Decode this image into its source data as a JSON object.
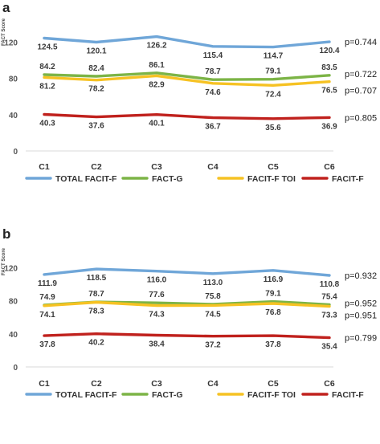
{
  "chart_data": [
    {
      "panel": "a",
      "type": "line",
      "ylabel": "FACT Score",
      "xlabel": "",
      "ylim": [
        0,
        140
      ],
      "yticks": [
        0,
        40,
        80,
        120
      ],
      "categories": [
        "C1",
        "C2",
        "C3",
        "C4",
        "C5",
        "C6"
      ],
      "grid": false,
      "legend_position": "bottom",
      "series": [
        {
          "name": "TOTAL FACIT-F",
          "color": "#6fa6d8",
          "values": [
            124.5,
            120.1,
            126.2,
            115.4,
            114.7,
            120.4
          ],
          "labels": [
            "124.5",
            "120.1",
            "126.2",
            "115.4",
            "114.7",
            "120.4"
          ],
          "label_side": "below",
          "p_value": "p=0.744"
        },
        {
          "name": "FACT-G",
          "color": "#7cb446",
          "values": [
            84.2,
            82.4,
            86.1,
            78.7,
            79.1,
            83.5
          ],
          "labels": [
            "84.2",
            "82.4",
            "86.1",
            "78.7",
            "79.1",
            "83.5"
          ],
          "label_side": "above",
          "p_value": "p=0.722"
        },
        {
          "name": "FACIT-F TOI",
          "color": "#f6c223",
          "values": [
            81.2,
            78.2,
            82.9,
            74.6,
            72.4,
            76.5
          ],
          "labels": [
            "81.2",
            "78.2",
            "82.9",
            "74.6",
            "72.4",
            "76.5"
          ],
          "label_side": "below",
          "p_value": "p=0.707"
        },
        {
          "name": "FACIT-F",
          "color": "#c0211d",
          "values": [
            40.3,
            37.6,
            40.1,
            36.7,
            35.6,
            36.9
          ],
          "labels": [
            "40.3",
            "37.6",
            "40.1",
            "36.7",
            "35.6",
            "36.9"
          ],
          "label_side": "below",
          "p_value": "p=0.805"
        }
      ]
    },
    {
      "panel": "b",
      "type": "line",
      "ylabel": "FACT Score",
      "xlabel": "",
      "ylim": [
        0,
        140
      ],
      "yticks": [
        0,
        40,
        80,
        120
      ],
      "categories": [
        "C1",
        "C2",
        "C3",
        "C4",
        "C5",
        "C6"
      ],
      "grid": false,
      "legend_position": "bottom",
      "series": [
        {
          "name": "TOTAL FACIT-F",
          "color": "#6fa6d8",
          "values": [
            111.9,
            118.5,
            116.0,
            113.0,
            116.9,
            110.8
          ],
          "labels": [
            "111.9",
            "118.5",
            "116.0",
            "113.0",
            "116.9",
            "110.8"
          ],
          "label_side": "below",
          "p_value": "p=0.932"
        },
        {
          "name": "FACT-G",
          "color": "#7cb446",
          "values": [
            74.9,
            78.7,
            77.6,
            75.8,
            79.1,
            75.4
          ],
          "labels": [
            "74.9",
            "78.7",
            "77.6",
            "75.8",
            "79.1",
            "75.4"
          ],
          "label_side": "above",
          "p_value": "p=0.952"
        },
        {
          "name": "FACIT-F TOI",
          "color": "#f6c223",
          "values": [
            74.1,
            78.3,
            74.3,
            74.5,
            76.8,
            73.3
          ],
          "labels": [
            "74.1",
            "78.3",
            "74.3",
            "74.5",
            "76.8",
            "73.3"
          ],
          "label_side": "below",
          "p_value": "p=0.951"
        },
        {
          "name": "FACIT-F",
          "color": "#c0211d",
          "values": [
            37.8,
            40.2,
            38.4,
            37.2,
            37.8,
            35.4
          ],
          "labels": [
            "37.8",
            "40.2",
            "38.4",
            "37.2",
            "37.8",
            "35.4"
          ],
          "label_side": "below",
          "p_value": "p=0.799"
        }
      ]
    }
  ]
}
